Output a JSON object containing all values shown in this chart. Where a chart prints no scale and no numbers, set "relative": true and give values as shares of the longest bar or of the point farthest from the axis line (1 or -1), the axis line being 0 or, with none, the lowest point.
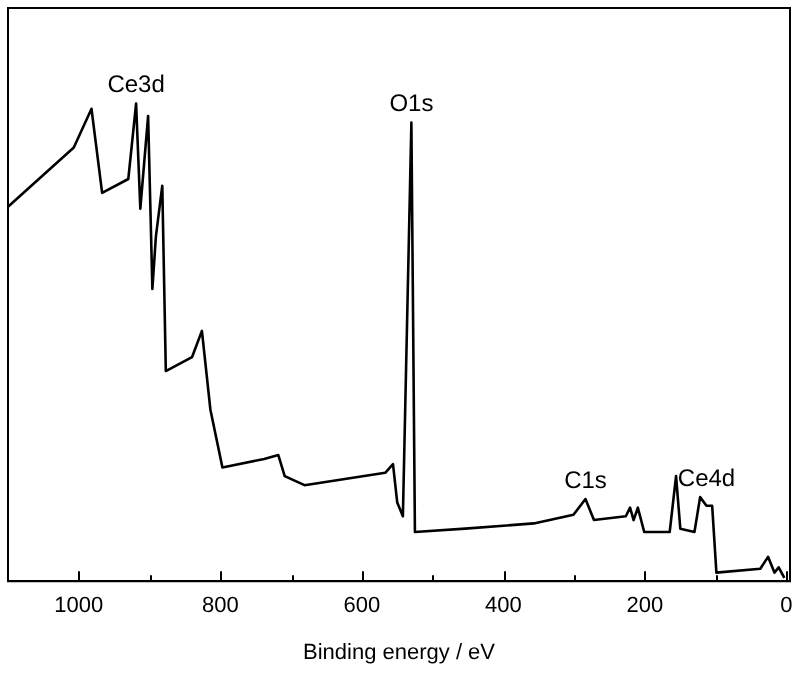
{
  "chart_data": {
    "type": "line",
    "xlabel": "Binding energy / eV",
    "relative": true,
    "grid": false,
    "legend": false,
    "marker": "none",
    "line_style": "solid",
    "xlim": [
      1100,
      -5
    ],
    "xticks": [
      0,
      {
        "value": 100,
        "label": null
      },
      200,
      {
        "value": 300,
        "label": null
      },
      400,
      {
        "value": 500,
        "label": null
      },
      600,
      {
        "value": 700,
        "label": null
      },
      800,
      {
        "value": 900,
        "label": null
      },
      1000
    ],
    "series": [
      {
        "color": "#000000",
        "x": [
          1100,
          1007,
          982,
          967,
          930,
          919,
          913,
          902,
          896,
          891,
          882,
          877,
          840,
          826,
          814,
          797,
          738,
          718,
          709,
          681,
          567,
          556,
          550,
          542,
          530,
          525,
          454,
          357,
          301,
          284,
          272,
          227,
          221,
          216,
          210,
          201,
          165,
          156,
          150,
          130,
          122,
          113,
          105,
          99,
          37,
          26,
          17,
          11,
          3
        ],
        "values": [
          0.784,
          0.908,
          0.989,
          0.813,
          0.842,
          1.0,
          0.78,
          0.974,
          0.612,
          0.722,
          0.828,
          0.44,
          0.469,
          0.524,
          0.359,
          0.238,
          0.256,
          0.264,
          0.22,
          0.201,
          0.227,
          0.245,
          0.165,
          0.136,
          0.96,
          0.103,
          0.11,
          0.121,
          0.139,
          0.172,
          0.128,
          0.136,
          0.154,
          0.128,
          0.154,
          0.103,
          0.103,
          0.22,
          0.11,
          0.103,
          0.176,
          0.158,
          0.158,
          0.018,
          0.026,
          0.051,
          0.018,
          0.029,
          0.007
        ]
      }
    ],
    "annotations": [
      {
        "text": "Ce3d",
        "x": 919,
        "y": 1.0
      },
      {
        "text": "O1s",
        "x": 530,
        "y": 0.96
      },
      {
        "text": "C1s",
        "x": 284,
        "y": 0.172
      },
      {
        "text": "Ce4d",
        "x": 113,
        "y": 0.176
      }
    ]
  }
}
